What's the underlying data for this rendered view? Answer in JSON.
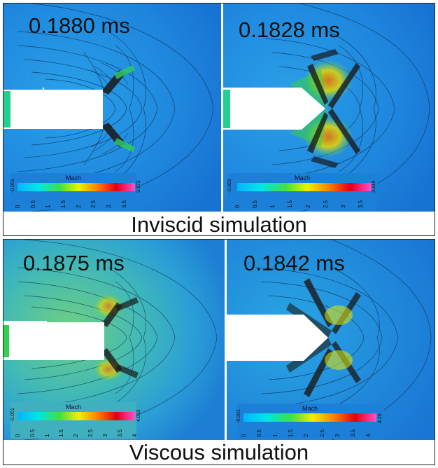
{
  "top_section": {
    "caption": "Inviscid simulation",
    "left": {
      "time": "0.1880 ms",
      "legend": {
        "title": "Mach",
        "min": "-0.001",
        "max": "3.873",
        "ticks": [
          "0",
          "0.5",
          "1",
          "1.5",
          "2",
          "2.5",
          "3",
          "3.5"
        ]
      }
    },
    "right": {
      "time": "0.1828 ms",
      "legend": {
        "title": "Mach",
        "min": "-0.001",
        "max": "3.819",
        "ticks": [
          "0",
          "0.5",
          "1",
          "1.5",
          "2",
          "2.5",
          "3",
          "3.5"
        ]
      }
    }
  },
  "bottom_section": {
    "caption": "Viscous simulation",
    "left": {
      "time": "0.1875 ms",
      "legend": {
        "title": "Mach",
        "min": "-0.001",
        "max": "4.033",
        "ticks": [
          "0",
          "0.5",
          "1",
          "1.5",
          "2",
          "2.5",
          "3",
          "3.5",
          "4"
        ]
      }
    },
    "right": {
      "time": "0.1842 ms",
      "legend": {
        "title": "Mach",
        "min": "-0.001",
        "max": "4.26",
        "ticks": [
          "0",
          "0.5",
          "1",
          "1.5",
          "2",
          "2.5",
          "3",
          "3.5",
          "4"
        ]
      }
    }
  },
  "colors": {
    "inviscid_background": "#1e86dc",
    "viscous_background": "#3fb3c4",
    "colormap": [
      "#00b4ff",
      "#00e0e0",
      "#50e050",
      "#e8e800",
      "#ff8000",
      "#e00000",
      "#ff40c0"
    ]
  }
}
